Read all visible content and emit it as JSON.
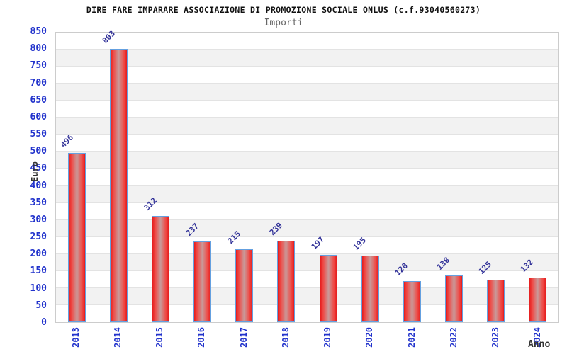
{
  "header": {
    "title": "DIRE FARE IMPARARE ASSOCIAZIONE DI PROMOZIONE SOCIALE ONLUS (c.f.93040560273)",
    "subtitle": "Importi"
  },
  "chart_data": {
    "type": "bar",
    "title": "DIRE FARE IMPARARE ASSOCIAZIONE DI PROMOZIONE SOCIALE ONLUS (c.f.93040560273)",
    "subtitle": "Importi",
    "categories": [
      "2013",
      "2014",
      "2015",
      "2016",
      "2017",
      "2018",
      "2019",
      "2020",
      "2021",
      "2022",
      "2023",
      "2024"
    ],
    "values": [
      496,
      803,
      312,
      237,
      215,
      239,
      197,
      195,
      120,
      138,
      125,
      132
    ],
    "bar_labels": [
      "496",
      "803",
      "312",
      "237",
      "215",
      "239",
      "197",
      "195",
      "120",
      "138",
      "125",
      "132"
    ],
    "xlabel": "Anno",
    "ylabel": "Euro",
    "ylim": [
      0,
      850
    ],
    "ytick_step": 50,
    "grid": true,
    "band_shading": "alternating horizontal 50-unit bands, gray below 800,700,600,500,400,300,200,100",
    "legend": "none"
  },
  "colors": {
    "background": "#ffffff",
    "bar_fill_edge": "#e51d1d",
    "bar_fill_center": "#c99a9a",
    "bar_border": "#64a0e0",
    "axis_tick_text": "#2233cc",
    "bar_value_text": "#333399",
    "title_text": "#111111",
    "subtitle_text": "#666666",
    "axis_title_text": "#333333",
    "plot_border": "#cccccc",
    "band_shade": "#f2f2f2",
    "gridline": "#e3e3e3"
  }
}
